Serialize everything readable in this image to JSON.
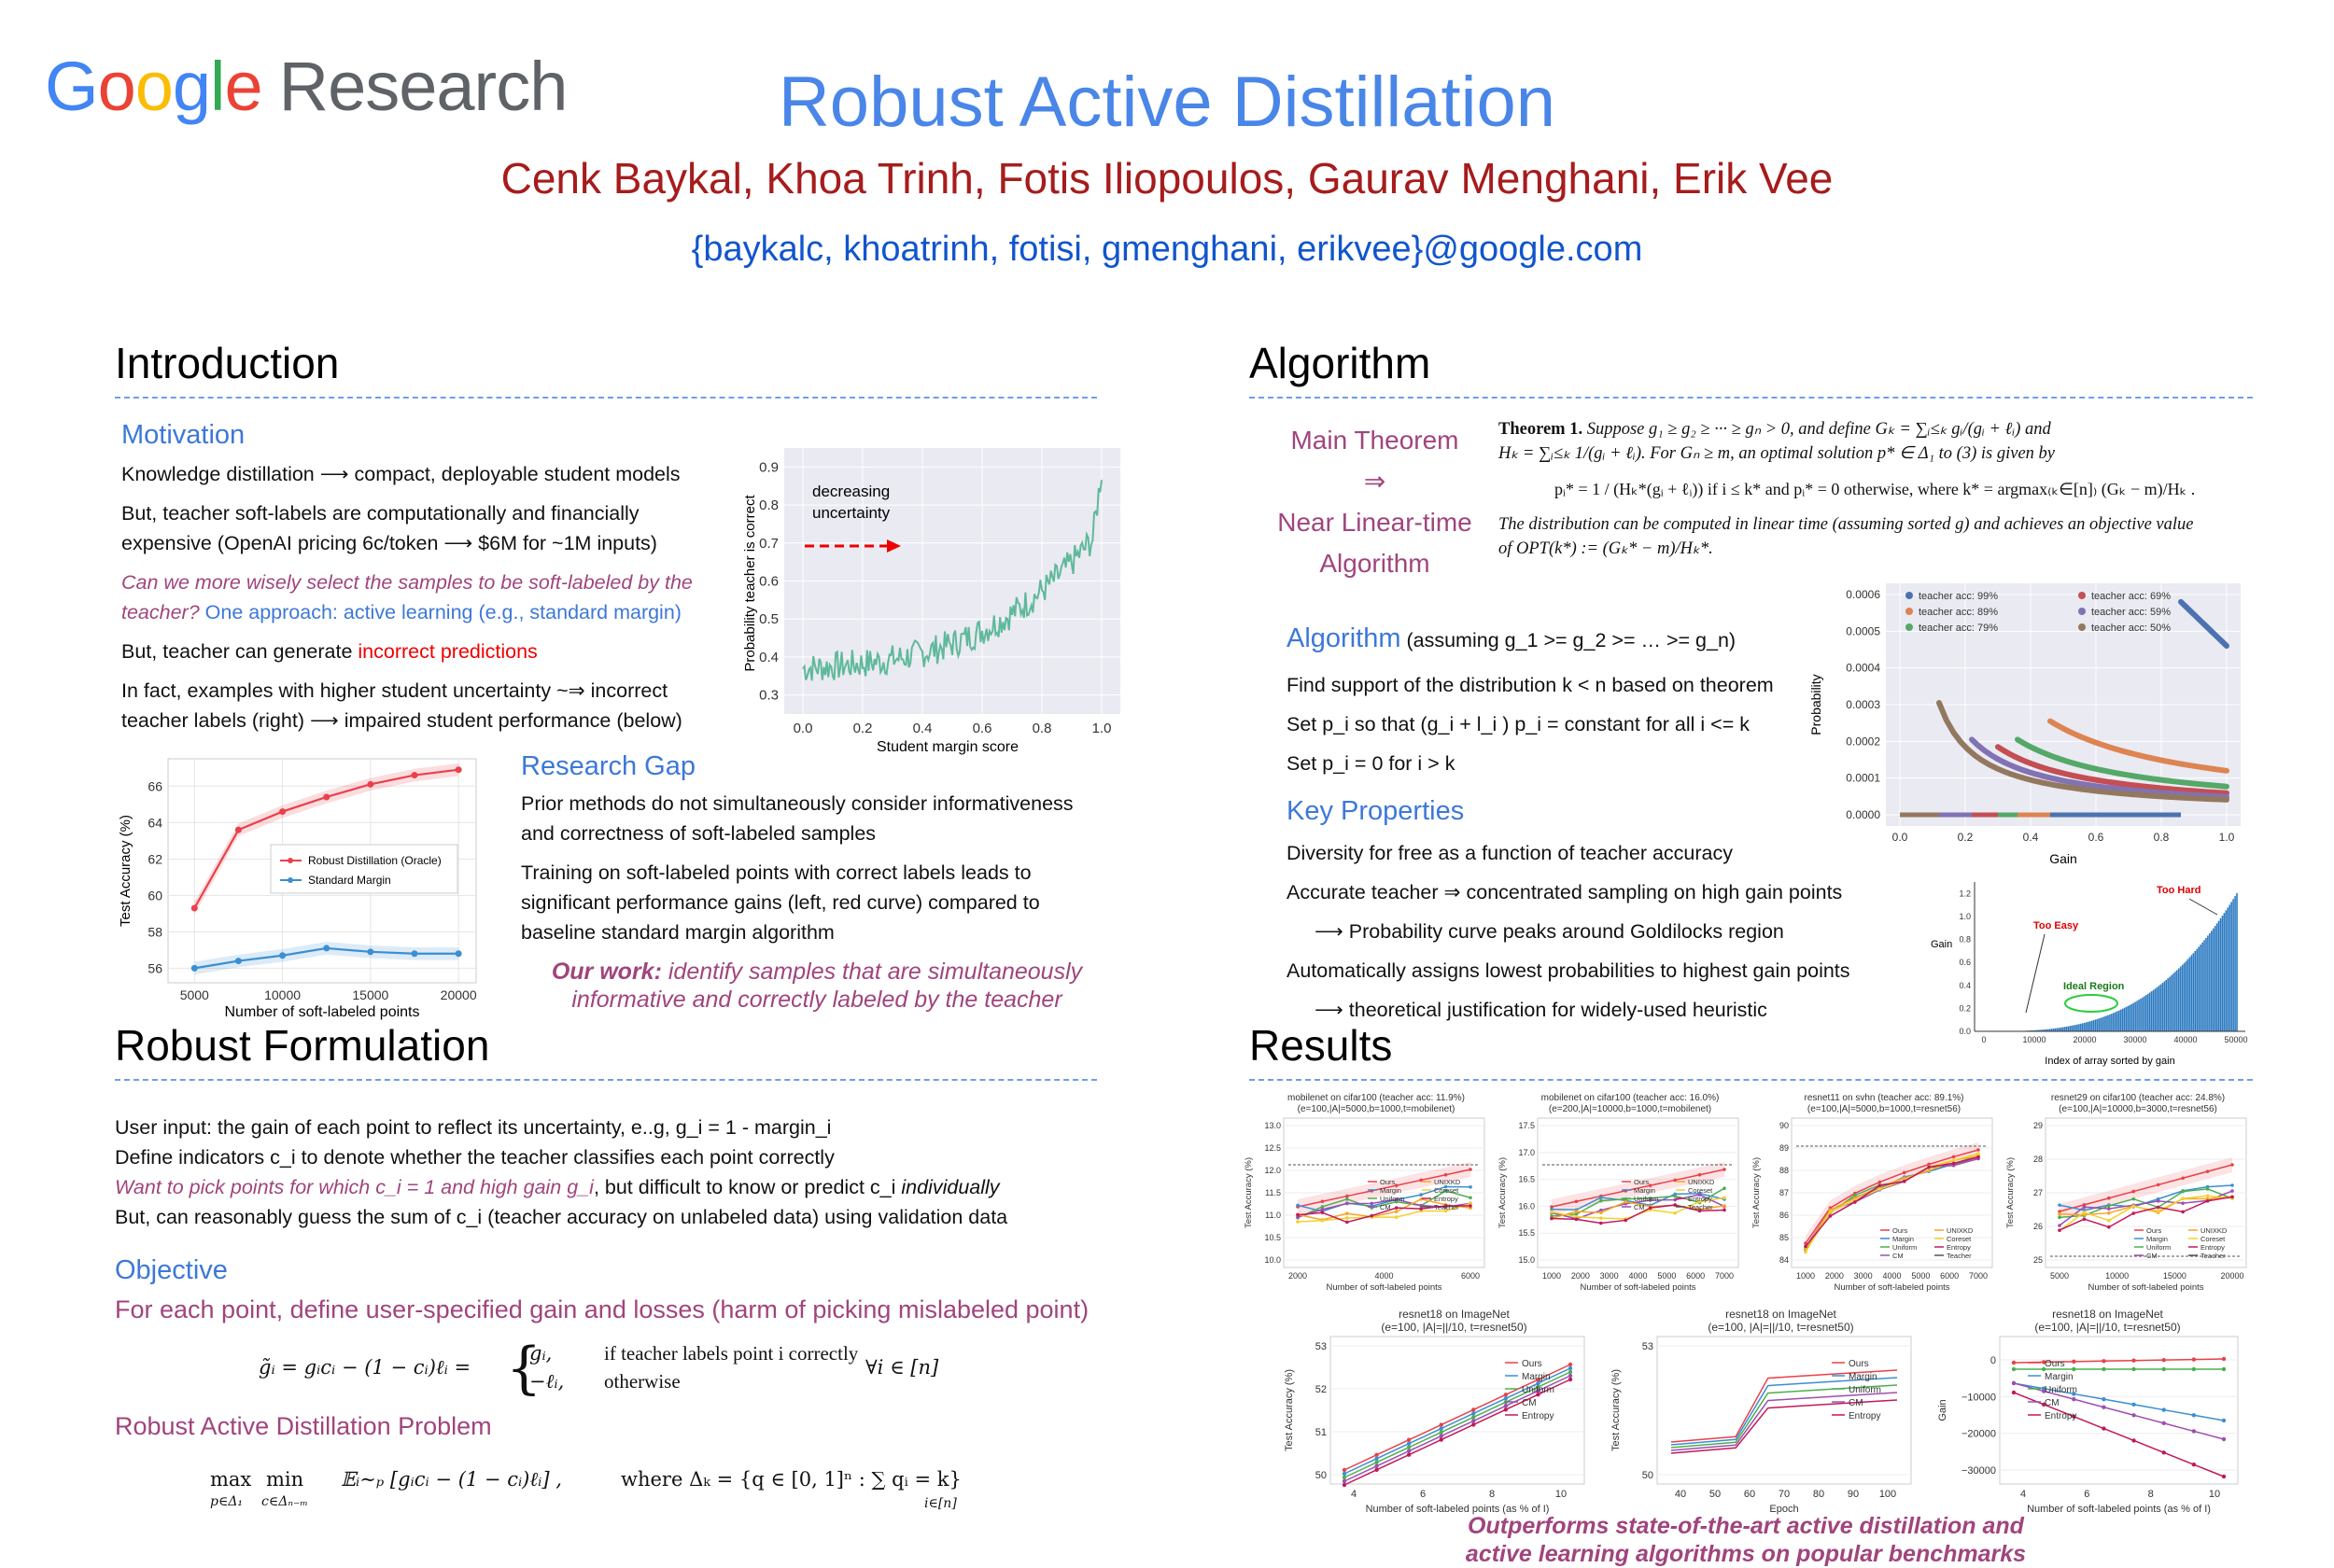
{
  "header": {
    "logo_word": "Google",
    "logo_suffix": "Research",
    "title": "Robust Active Distillation",
    "authors": "Cenk Baykal, Khoa Trinh, Fotis Iliopoulos, Gaurav Menghani, Erik Vee",
    "emails": "{baykalc, khoatrinh, fotisi, gmenghani, erikvee}@google.com"
  },
  "intro": {
    "heading": "Introduction",
    "motivation_label": "Motivation",
    "p1": "Knowledge distillation ⟶ compact, deployable student models",
    "p2a": "But, teacher soft-labels are computationally and financially",
    "p2b": "expensive (OpenAI pricing 6c/token ⟶ $6M for ~1M inputs)",
    "q1": "Can we more wisely select the samples to be soft-labeled by the",
    "q2": "teacher?",
    "q2b": " One approach: active learning (e.g., standard margin)",
    "p3a": "But, teacher can generate ",
    "p3b": "incorrect predictions",
    "p4a": "In fact, examples with higher student uncertainty ~⇒  incorrect",
    "p4b": "teacher labels (right) ⟶ impaired student performance (below)",
    "gap_label": "Research Gap",
    "g1": "Prior methods do not simultaneously consider informativeness",
    "g2": "and correctness of soft-labeled samples",
    "g3": "Training on soft-labeled points with correct labels  leads to",
    "g4": "significant performance gains (left, red curve) compared to",
    "g5": "baseline standard margin algorithm",
    "ourwork_bold": "Our work:",
    "ourwork_1": " identify samples that are simultaneously",
    "ourwork_2": "informative and correctly labeled by the teacher"
  },
  "fig_margin": {
    "ylabel": "Probability teacher is correct",
    "xlabel": "Student margin score",
    "annotation_1": "decreasing",
    "annotation_2": "uncertainty",
    "xticks": [
      "0.0",
      "0.2",
      "0.4",
      "0.6",
      "0.8",
      "1.0"
    ],
    "yticks": [
      "0.3",
      "0.4",
      "0.5",
      "0.6",
      "0.7",
      "0.8",
      "0.9"
    ],
    "line_color": "#5fb99a"
  },
  "chart_data": [
    {
      "type": "line",
      "x": [
        5000,
        7500,
        10000,
        12500,
        15000,
        17500,
        20000
      ],
      "series": [
        {
          "name": "Robust Distillation (Oracle)",
          "values": [
            59.3,
            63.6,
            64.6,
            65.4,
            66.1,
            66.6,
            66.9
          ],
          "color": "#e8414b"
        },
        {
          "name": "Standard Margin",
          "values": [
            56.0,
            56.4,
            56.7,
            57.1,
            56.9,
            56.8,
            56.8
          ],
          "color": "#3b8fd1"
        }
      ],
      "xlabel": "Number of soft-labeled points",
      "ylabel": "Test Accuracy (%)",
      "xticks": [
        "5000",
        "10000",
        "15000",
        "20000"
      ],
      "yticks": [
        "56",
        "58",
        "60",
        "62",
        "64",
        "66"
      ],
      "xlim": [
        3500,
        21000
      ],
      "ylim": [
        55.2,
        67.5
      ]
    }
  ],
  "robust": {
    "heading": "Robust Formulation",
    "l1": "User input: the gain of each point to reflect its uncertainty, e..g, g_i = 1 - margin_i",
    "l2": "Define indicators c_i to denote whether the teacher classifies each point correctly",
    "l3a": "Want to pick points for which c_i = 1 and high gain g_i",
    "l3b": ", but difficult  to know or predict c_i ",
    "l3c": "individually",
    "l4": "But, can reasonably guess the sum of c_i (teacher accuracy on unlabeled data) using validation data",
    "objective_label": "Objective",
    "objective_text": "For each point, define user-specified gain and losses (harm of picking mislabeled point)",
    "eq1_lhs": "g̃ᵢ = gᵢcᵢ − (1 − cᵢ)ℓᵢ =",
    "eq1_case1": "gᵢ,",
    "eq1_case1_cond": "if teacher labels point i correctly",
    "eq1_case2": "−ℓᵢ,",
    "eq1_case2_cond": "otherwise",
    "eq1_forall": "∀i ∈ [n]",
    "problem_label": "Robust Active Distillation Problem",
    "eq2_max": "max",
    "eq2_max_sub": "p∈Δ₁",
    "eq2_min": "min",
    "eq2_min_sub": "c∈Δₙ₋ₘ",
    "eq2_body": "𝔼ᵢ∼ₚ [gᵢcᵢ − (1 − cᵢ)ℓᵢ] ,",
    "eq2_where": "where Δₖ = {q ∈ [0, 1]ⁿ : ∑ qᵢ = k}",
    "eq2_sum_sub": "i∈[n]"
  },
  "algorithm": {
    "heading": "Algorithm",
    "main_theorem": "Main Theorem",
    "implies": "⇒",
    "near_linear_1": "Near Linear-time",
    "near_linear_2": "Algorithm",
    "thm_title": "Theorem 1.",
    "thm_l1": "Suppose g₁ ≥ g₂ ≥ ··· ≥ gₙ > 0, and define Gₖ = ∑ᵢ≤ₖ gᵢ/(gᵢ + ℓᵢ) and",
    "thm_l2": "Hₖ = ∑ᵢ≤ₖ 1/(gᵢ + ℓᵢ). For Gₙ ≥ m, an optimal solution p* ∈ Δ₁ to (3) is given by",
    "thm_eq": "pᵢ* = 1 / (Hₖ*(gᵢ + ℓᵢ))   if i ≤ k*  and pᵢ* = 0 otherwise, where  k* = argmax₍ₖ∈[n]₎ (Gₖ − m)/Hₖ .",
    "thm_l3": "The distribution can be computed in linear time (assuming sorted g) and achieves an objective value",
    "thm_l4": "of OPT(k*) := (Gₖ* − m)/Hₖ*.",
    "algo_label": "Algorithm",
    "algo_note": " (assuming g_1 >= g_2 >= … >= g_n)",
    "a1": "Find support of the distribution k < n based on theorem",
    "a2": "Set p_i so that (g_i + l_i ) p_i = constant for all i <= k",
    "a3": "Set p_i = 0 for i > k",
    "kp_label": "Key Properties",
    "k1": "Diversity for free as a function of teacher accuracy",
    "k2": "Accurate teacher  ⇒ concentrated sampling on high gain points",
    "k3": "⟶ Probability curve peaks around Goldilocks region",
    "k4": "Automatically assigns lowest probabilities to highest gain points",
    "k5": "⟶ theoretical justification for widely-used heuristic"
  },
  "fig_prob": {
    "ylabel": "Probability",
    "xlabel": "Gain",
    "yticks": [
      "0.0000",
      "0.0001",
      "0.0002",
      "0.0003",
      "0.0004",
      "0.0005",
      "0.0006"
    ],
    "xticks": [
      "0.0",
      "0.2",
      "0.4",
      "0.6",
      "0.8",
      "1.0"
    ],
    "legend": [
      {
        "label": "teacher acc: 99%",
        "color": "#4c72b0"
      },
      {
        "label": "teacher acc: 89%",
        "color": "#dd8452"
      },
      {
        "label": "teacher acc: 79%",
        "color": "#55a868"
      },
      {
        "label": "teacher acc: 69%",
        "color": "#c44e52"
      },
      {
        "label": "teacher acc: 59%",
        "color": "#8172b3"
      },
      {
        "label": "teacher acc: 50%",
        "color": "#937860"
      }
    ]
  },
  "fig_gain": {
    "ylabel": "Gain",
    "xlabel": "Index of array sorted by gain",
    "yticks": [
      "0.0",
      "0.2",
      "0.4",
      "0.6",
      "0.8",
      "1.0",
      "1.2"
    ],
    "xticks": [
      "0",
      "10000",
      "20000",
      "30000",
      "40000",
      "50000"
    ],
    "too_hard": "Too Hard",
    "too_easy": "Too Easy",
    "ideal": "Ideal Region"
  },
  "results": {
    "heading": "Results",
    "top_plots": [
      {
        "t1": "mobilenet on cifar100 (teacher acc: 11.9%)",
        "t2": "(e=100,|A|=5000,b=1000,t=mobilenet)",
        "xticks": [
          "2000",
          "4000",
          "6000"
        ],
        "yticks": [
          "10.0",
          "10.5",
          "11.0",
          "11.5",
          "12.0",
          "12.5",
          "13.0"
        ]
      },
      {
        "t1": "mobilenet on cifar100 (teacher acc: 16.0%)",
        "t2": "(e=200,|A|=10000,b=1000,t=mobilenet)",
        "xticks": [
          "1000",
          "2000",
          "3000",
          "4000",
          "5000",
          "6000",
          "7000"
        ],
        "yticks": [
          "15.0",
          "15.5",
          "16.0",
          "16.5",
          "17.0",
          "17.5"
        ]
      },
      {
        "t1": "resnet11 on svhn (teacher acc: 89.1%)",
        "t2": "(e=100,|A|=5000,b=1000,t=resnet56)",
        "xticks": [
          "1000",
          "2000",
          "3000",
          "4000",
          "5000",
          "6000",
          "7000"
        ],
        "yticks": [
          "84",
          "85",
          "86",
          "87",
          "88",
          "89",
          "90"
        ]
      },
      {
        "t1": "resnet29 on cifar100 (teacher acc: 24.8%)",
        "t2": "(e=100,|A|=10000,b=3000,t=resnet56)",
        "xticks": [
          "5000",
          "10000",
          "15000",
          "20000"
        ],
        "yticks": [
          "25",
          "26",
          "27",
          "28",
          "29"
        ]
      }
    ],
    "top_xlabel": "Number of soft-labeled points",
    "top_ylabel": "Test Accuracy (%)",
    "top_legend": [
      "Ours",
      "Margin",
      "Uniform",
      "CM",
      "UNIXKD",
      "Coreset",
      "Entropy",
      "Teacher"
    ],
    "bottom_plots": [
      {
        "t1": "resnet18 on ImageNet",
        "t2": "(e=100, |A|=||/10, t=resnet50)",
        "xlabel": "Number of soft-labeled points (as % of I)",
        "ylabel": "Test Accuracy (%)",
        "xticks": [
          "4",
          "6",
          "8",
          "10"
        ],
        "yticks": [
          "50",
          "51",
          "52",
          "53"
        ]
      },
      {
        "t1": "resnet18 on ImageNet",
        "t2": "(e=100, |A|=||/10, t=resnet50)",
        "xlabel": "Epoch",
        "ylabel": "Test Accuracy (%)",
        "xticks": [
          "40",
          "50",
          "60",
          "70",
          "80",
          "90",
          "100"
        ],
        "yticks": [
          "50",
          "53"
        ]
      },
      {
        "t1": "resnet18 on ImageNet",
        "t2": "(e=100, |A|=||/10, t=resnet50)",
        "xlabel": "Number of soft-labeled points (as % of I)",
        "ylabel": "Gain",
        "xticks": [
          "4",
          "6",
          "8",
          "10"
        ],
        "yticks": [
          "0",
          "−10000",
          "−20000",
          "−30000"
        ]
      }
    ],
    "bottom_legend": [
      "Ours",
      "Margin",
      "Uniform",
      "CM",
      "Entropy"
    ],
    "outperform_1": "Outperforms state-of-the-art  active distillation and",
    "outperform_2": "active learning algorithms on popular benchmarks",
    "colors": {
      "ours": "#e8414b",
      "margin": "#3b8fd1",
      "uniform": "#4caf50",
      "cm": "#9c4fb0",
      "unixkd": "#f5a623",
      "coreset": "#f2d12c",
      "entropy": "#c2185b",
      "teacher": "#555555"
    }
  }
}
